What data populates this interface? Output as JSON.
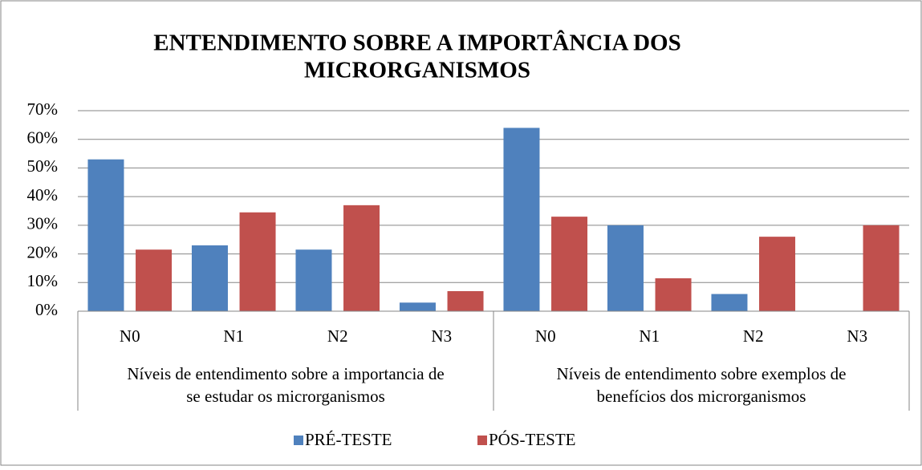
{
  "chart_data": {
    "type": "bar",
    "title": [
      "ENTENDIMENTO SOBRE A IMPORTÂNCIA DOS",
      "MICRORGANISMOS"
    ],
    "groups": [
      {
        "label": [
          "Níveis de entendimento sobre a importancia de",
          "se estudar os microrganismos"
        ],
        "categories": [
          "N0",
          "N1",
          "N2",
          "N3"
        ]
      },
      {
        "label": [
          "Níveis de entendimento sobre exemplos de",
          "benefícios dos microrganismos"
        ],
        "categories": [
          "N0",
          "N1",
          "N2",
          "N3"
        ]
      }
    ],
    "series": [
      {
        "name": "PRÉ-TESTE",
        "color": "#4f81bd",
        "values": [
          53,
          23,
          21.5,
          3,
          64,
          30,
          6,
          0
        ]
      },
      {
        "name": "PÓS-TESTE",
        "color": "#c0504d",
        "values": [
          21.5,
          34.5,
          37,
          7,
          33,
          11.5,
          26,
          30
        ]
      }
    ],
    "ylim": [
      0,
      70
    ],
    "yticks": [
      {
        "value": 0,
        "label": "0%"
      },
      {
        "value": 10,
        "label": "10%"
      },
      {
        "value": 20,
        "label": "20%"
      },
      {
        "value": 30,
        "label": "30%"
      },
      {
        "value": 40,
        "label": "40%"
      },
      {
        "value": 50,
        "label": "50%"
      },
      {
        "value": 60,
        "label": "60%"
      },
      {
        "value": 70,
        "label": "70%"
      }
    ],
    "grid": true,
    "legend": "bottom"
  }
}
